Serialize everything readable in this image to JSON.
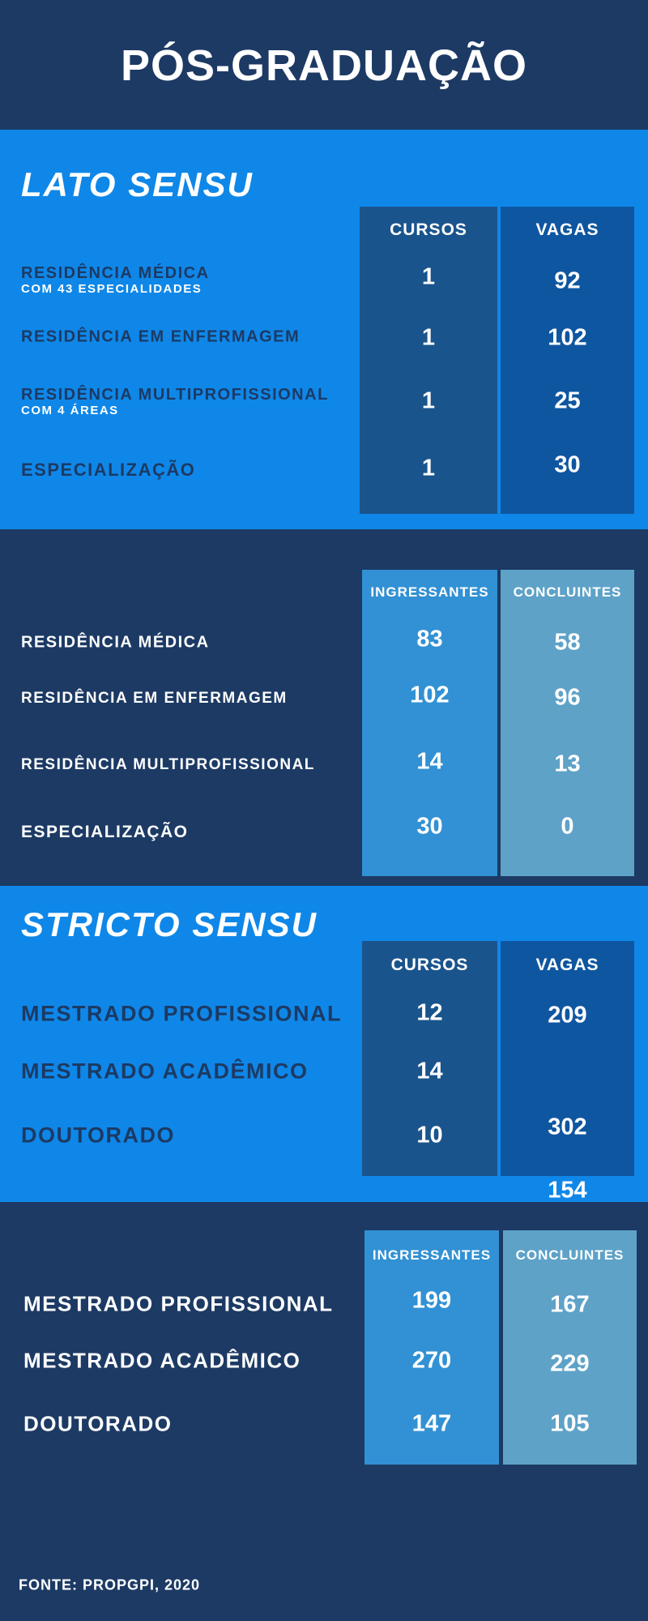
{
  "title": "PÓS-GRADUAÇÃO",
  "colors": {
    "header_bg": "#1c3a64",
    "light_section_bg": "#0f87e8",
    "cursos_col": "#1a548c",
    "vagas_col": "#0f56a0",
    "ingressantes_col": "#3291d4",
    "concluintes_col": "#5ea2c8"
  },
  "lato": {
    "title": "LATO SENSU",
    "headers": [
      "CURSOS",
      "VAGAS"
    ],
    "rows": [
      {
        "label": "RESIDÊNCIA MÉDICA",
        "sub": "COM 43 ESPECIALIDADES",
        "cursos": "1",
        "vagas": "92"
      },
      {
        "label": "RESIDÊNCIA EM ENFERMAGEM",
        "sub": "",
        "cursos": "1",
        "vagas": "102"
      },
      {
        "label": "RESIDÊNCIA MULTIPROFISSIONAL",
        "sub": "COM 4 ÁREAS",
        "cursos": "1",
        "vagas": "25"
      },
      {
        "label": "ESPECIALIZAÇÃO",
        "sub": "",
        "cursos": "1",
        "vagas": "30"
      }
    ]
  },
  "lato_alunos": {
    "headers": [
      "INGRESSANTES",
      "CONCLUINTES"
    ],
    "rows": [
      {
        "label": "RESIDÊNCIA MÉDICA",
        "ingressantes": "83",
        "concluintes": "58"
      },
      {
        "label": "RESIDÊNCIA EM ENFERMAGEM",
        "ingressantes": "102",
        "concluintes": "96"
      },
      {
        "label": "RESIDÊNCIA MULTIPROFISSIONAL",
        "ingressantes": "14",
        "concluintes": "13"
      },
      {
        "label": "ESPECIALIZAÇÃO",
        "ingressantes": "30",
        "concluintes": "0"
      }
    ]
  },
  "stricto": {
    "title": "STRICTO SENSU",
    "headers": [
      "CURSOS",
      "VAGAS"
    ],
    "rows": [
      {
        "label": "MESTRADO PROFISSIONAL",
        "cursos": "12",
        "vagas": "209"
      },
      {
        "label": "MESTRADO ACADÊMICO",
        "cursos": "14",
        "vagas": "302"
      },
      {
        "label": "DOUTORADO",
        "cursos": "10",
        "vagas": "154"
      }
    ]
  },
  "stricto_alunos": {
    "headers": [
      "INGRESSANTES",
      "CONCLUINTES"
    ],
    "rows": [
      {
        "label": "MESTRADO PROFISSIONAL",
        "ingressantes": "199",
        "concluintes": "167"
      },
      {
        "label": "MESTRADO ACADÊMICO",
        "ingressantes": "270",
        "concluintes": "229"
      },
      {
        "label": "DOUTORADO",
        "ingressantes": "147",
        "concluintes": "105"
      }
    ]
  },
  "footer": "FONTE: PROPGPI, 2020"
}
